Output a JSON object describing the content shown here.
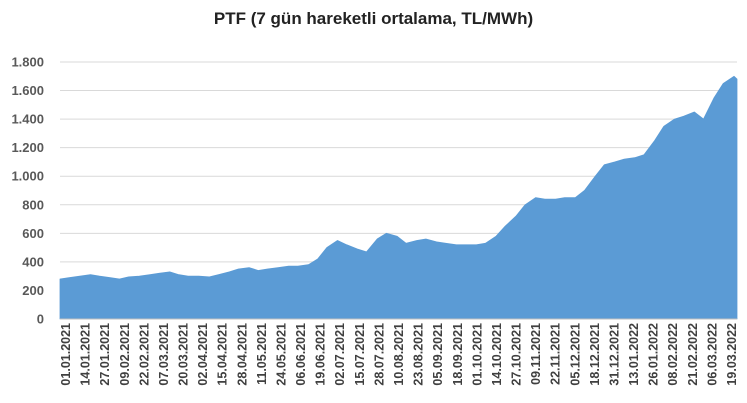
{
  "chart_data": {
    "type": "area",
    "title": "PTF (7 gün hareketli ortalama, TL/MWh)",
    "xlabel": "",
    "ylabel": "",
    "ylim": [
      0,
      1800
    ],
    "yticks": [
      0,
      200,
      400,
      600,
      800,
      1000,
      1200,
      1400,
      1600,
      1800
    ],
    "ytick_labels": [
      "0",
      "200",
      "400",
      "600",
      "800",
      "1.000",
      "1.200",
      "1.400",
      "1.600",
      "1.800"
    ],
    "xlim": [
      "2021-01-01",
      "2022-03-21"
    ],
    "xtick_labels": [
      "01.01.2021",
      "14.01.2021",
      "27.01.2021",
      "09.02.2021",
      "22.02.2021",
      "07.03.2021",
      "20.03.2021",
      "02.04.2021",
      "15.04.2021",
      "28.04.2021",
      "11.05.2021",
      "24.05.2021",
      "06.06.2021",
      "19.06.2021",
      "02.07.2021",
      "15.07.2021",
      "28.07.2021",
      "10.08.2021",
      "23.08.2021",
      "05.09.2021",
      "18.09.2021",
      "01.10.2021",
      "14.10.2021",
      "27.10.2021",
      "09.11.2021",
      "22.11.2021",
      "05.12.2021",
      "18.12.2021",
      "31.12.2021",
      "13.01.2022",
      "26.01.2022",
      "08.02.2022",
      "21.02.2022",
      "06.03.2022",
      "19.03.2022"
    ],
    "grid": true,
    "legend": "none",
    "color": "#5B9BD5",
    "series": [
      {
        "x": [
          "2021-01-01",
          "2021-01-07",
          "2021-01-14",
          "2021-01-21",
          "2021-01-27",
          "2021-02-03",
          "2021-02-09",
          "2021-02-15",
          "2021-02-22",
          "2021-03-01",
          "2021-03-07",
          "2021-03-14",
          "2021-03-20",
          "2021-03-26",
          "2021-04-02",
          "2021-04-09",
          "2021-04-15",
          "2021-04-22",
          "2021-04-28",
          "2021-05-05",
          "2021-05-11",
          "2021-05-17",
          "2021-05-24",
          "2021-05-31",
          "2021-06-06",
          "2021-06-13",
          "2021-06-19",
          "2021-06-25",
          "2021-07-02",
          "2021-07-08",
          "2021-07-15",
          "2021-07-21",
          "2021-07-28",
          "2021-08-03",
          "2021-08-10",
          "2021-08-16",
          "2021-08-23",
          "2021-08-29",
          "2021-09-05",
          "2021-09-11",
          "2021-09-18",
          "2021-09-24",
          "2021-10-01",
          "2021-10-07",
          "2021-10-14",
          "2021-10-20",
          "2021-10-27",
          "2021-11-02",
          "2021-11-09",
          "2021-11-15",
          "2021-11-22",
          "2021-11-28",
          "2021-12-05",
          "2021-12-11",
          "2021-12-18",
          "2021-12-24",
          "2021-12-31",
          "2022-01-06",
          "2022-01-13",
          "2022-01-19",
          "2022-01-26",
          "2022-02-01",
          "2022-02-08",
          "2022-02-14",
          "2022-02-21",
          "2022-02-27",
          "2022-03-06",
          "2022-03-12",
          "2022-03-19",
          "2022-03-21"
        ],
        "values": [
          280,
          290,
          300,
          310,
          300,
          290,
          280,
          295,
          300,
          310,
          320,
          330,
          310,
          300,
          300,
          295,
          310,
          330,
          350,
          360,
          340,
          350,
          360,
          370,
          370,
          380,
          420,
          500,
          550,
          520,
          490,
          470,
          560,
          600,
          580,
          530,
          550,
          560,
          540,
          530,
          520,
          520,
          520,
          530,
          580,
          650,
          720,
          800,
          850,
          840,
          840,
          850,
          850,
          900,
          1000,
          1080,
          1100,
          1120,
          1130,
          1150,
          1250,
          1350,
          1400,
          1420,
          1450,
          1400,
          1550,
          1650,
          1700,
          1680
        ]
      }
    ]
  }
}
